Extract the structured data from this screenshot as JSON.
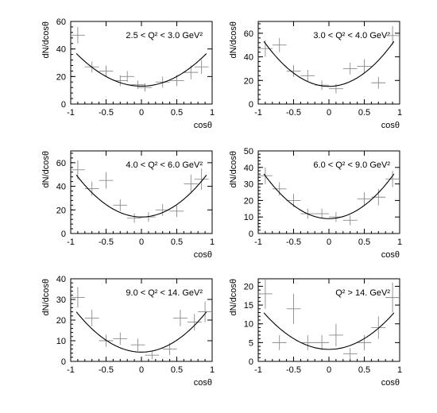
{
  "chart_data": [
    {
      "type": "scatter",
      "panel_label": "2.5 < Q² < 3.0 GeV²",
      "xlabel": "cosθ",
      "ylabel": "dN/dcosθ",
      "xlim": [
        -1,
        1
      ],
      "ylim": [
        0,
        60
      ],
      "xticks": [
        -1,
        -0.5,
        0,
        0.5,
        1
      ],
      "xtick_labels": [
        "-1",
        "-0.5",
        "0",
        "0.5",
        "1"
      ],
      "yticks": [
        0,
        20,
        40,
        60
      ],
      "fit": {
        "a": 13,
        "b": 28
      },
      "points": [
        {
          "x": -0.9,
          "y": 50,
          "xerr": 0.1,
          "yerr": 6
        },
        {
          "x": -0.7,
          "y": 27,
          "xerr": 0.1,
          "yerr": 4
        },
        {
          "x": -0.5,
          "y": 24,
          "xerr": 0.1,
          "yerr": 4
        },
        {
          "x": -0.3,
          "y": 17,
          "xerr": 0.1,
          "yerr": 4
        },
        {
          "x": -0.2,
          "y": 20,
          "xerr": 0.1,
          "yerr": 4
        },
        {
          "x": -0.05,
          "y": 14,
          "xerr": 0.1,
          "yerr": 3
        },
        {
          "x": 0.05,
          "y": 12,
          "xerr": 0.1,
          "yerr": 3
        },
        {
          "x": 0.3,
          "y": 16,
          "xerr": 0.1,
          "yerr": 4
        },
        {
          "x": 0.5,
          "y": 17,
          "xerr": 0.1,
          "yerr": 4
        },
        {
          "x": 0.7,
          "y": 23,
          "xerr": 0.1,
          "yerr": 5
        },
        {
          "x": 0.85,
          "y": 27,
          "xerr": 0.1,
          "yerr": 5
        }
      ]
    },
    {
      "type": "scatter",
      "panel_label": "3.0 < Q² < 4.0 GeV²",
      "xlabel": "cosθ",
      "ylabel": "dN/dcosθ",
      "xlim": [
        -1,
        1
      ],
      "ylim": [
        0,
        70
      ],
      "xticks": [
        -1,
        -0.5,
        0,
        0.5,
        1
      ],
      "xtick_labels": [
        "-1",
        "-0.5",
        "0",
        "0.5",
        "1"
      ],
      "yticks": [
        0,
        20,
        40,
        60
      ],
      "fit": {
        "a": 15,
        "b": 45
      },
      "points": [
        {
          "x": -0.9,
          "y": 47,
          "xerr": 0.1,
          "yerr": 7
        },
        {
          "x": -0.7,
          "y": 50,
          "xerr": 0.1,
          "yerr": 6
        },
        {
          "x": -0.5,
          "y": 28,
          "xerr": 0.1,
          "yerr": 5
        },
        {
          "x": -0.3,
          "y": 24,
          "xerr": 0.1,
          "yerr": 5
        },
        {
          "x": -0.1,
          "y": 16,
          "xerr": 0.1,
          "yerr": 4
        },
        {
          "x": 0.1,
          "y": 13,
          "xerr": 0.1,
          "yerr": 4
        },
        {
          "x": 0.3,
          "y": 30,
          "xerr": 0.1,
          "yerr": 5
        },
        {
          "x": 0.5,
          "y": 32,
          "xerr": 0.1,
          "yerr": 6
        },
        {
          "x": 0.7,
          "y": 18,
          "xerr": 0.1,
          "yerr": 5
        },
        {
          "x": 0.9,
          "y": 58,
          "xerr": 0.1,
          "yerr": 8
        }
      ]
    },
    {
      "type": "scatter",
      "panel_label": "4.0 < Q² < 6.0 GeV²",
      "xlabel": "cosθ",
      "ylabel": "dN/dcosθ",
      "xlim": [
        -1,
        1
      ],
      "ylim": [
        0,
        70
      ],
      "xticks": [
        -1,
        -0.5,
        0,
        0.5,
        1
      ],
      "xtick_labels": [
        "-1",
        "-0.5",
        "0",
        "0.5",
        "1"
      ],
      "yticks": [
        0,
        20,
        40,
        60
      ],
      "fit": {
        "a": 14,
        "b": 42
      },
      "points": [
        {
          "x": -0.9,
          "y": 54,
          "xerr": 0.1,
          "yerr": 8
        },
        {
          "x": -0.7,
          "y": 38,
          "xerr": 0.1,
          "yerr": 6
        },
        {
          "x": -0.5,
          "y": 45,
          "xerr": 0.1,
          "yerr": 7
        },
        {
          "x": -0.3,
          "y": 24,
          "xerr": 0.1,
          "yerr": 5
        },
        {
          "x": -0.1,
          "y": 13,
          "xerr": 0.1,
          "yerr": 4
        },
        {
          "x": 0.1,
          "y": 14,
          "xerr": 0.1,
          "yerr": 4
        },
        {
          "x": 0.3,
          "y": 20,
          "xerr": 0.1,
          "yerr": 5
        },
        {
          "x": 0.5,
          "y": 19,
          "xerr": 0.1,
          "yerr": 5
        },
        {
          "x": 0.7,
          "y": 42,
          "xerr": 0.1,
          "yerr": 8
        },
        {
          "x": 0.85,
          "y": 46,
          "xerr": 0.1,
          "yerr": 9
        }
      ]
    },
    {
      "type": "scatter",
      "panel_label": "6.0 < Q² < 9.0 GeV²",
      "xlabel": "cosθ",
      "ylabel": "dN/dcosθ",
      "xlim": [
        -1,
        1
      ],
      "ylim": [
        0,
        50
      ],
      "xticks": [
        -1,
        -0.5,
        0,
        0.5,
        1
      ],
      "xtick_labels": [
        "-1",
        "-0.5",
        "0",
        "0.5",
        "1"
      ],
      "yticks": [
        0,
        10,
        20,
        30,
        40,
        50
      ],
      "fit": {
        "a": 9,
        "b": 32
      },
      "points": [
        {
          "x": -0.9,
          "y": 35,
          "xerr": 0.1,
          "yerr": 5
        },
        {
          "x": -0.7,
          "y": 27,
          "xerr": 0.1,
          "yerr": 4
        },
        {
          "x": -0.5,
          "y": 20,
          "xerr": 0.1,
          "yerr": 4
        },
        {
          "x": -0.3,
          "y": 12,
          "xerr": 0.1,
          "yerr": 3
        },
        {
          "x": -0.1,
          "y": 12,
          "xerr": 0.1,
          "yerr": 3
        },
        {
          "x": 0.1,
          "y": 10,
          "xerr": 0.1,
          "yerr": 3
        },
        {
          "x": 0.3,
          "y": 8,
          "xerr": 0.1,
          "yerr": 3
        },
        {
          "x": 0.5,
          "y": 21,
          "xerr": 0.1,
          "yerr": 4
        },
        {
          "x": 0.7,
          "y": 22,
          "xerr": 0.1,
          "yerr": 5
        },
        {
          "x": 0.9,
          "y": 33,
          "xerr": 0.1,
          "yerr": 5
        }
      ]
    },
    {
      "type": "scatter",
      "panel_label": "9.0 < Q² < 14. GeV²",
      "xlabel": "cosθ",
      "ylabel": "dN/dcosθ",
      "xlim": [
        -1,
        1
      ],
      "ylim": [
        0,
        40
      ],
      "xticks": [
        -1,
        -0.5,
        0,
        0.5,
        1
      ],
      "xtick_labels": [
        "-1",
        "-0.5",
        "0",
        "0.5",
        "1"
      ],
      "yticks": [
        0,
        10,
        20,
        30,
        40
      ],
      "fit": {
        "a": 4.5,
        "b": 23
      },
      "points": [
        {
          "x": -0.9,
          "y": 31,
          "xerr": 0.1,
          "yerr": 5
        },
        {
          "x": -0.7,
          "y": 21,
          "xerr": 0.1,
          "yerr": 4
        },
        {
          "x": -0.5,
          "y": 10,
          "xerr": 0.1,
          "yerr": 3
        },
        {
          "x": -0.3,
          "y": 11,
          "xerr": 0.1,
          "yerr": 3
        },
        {
          "x": -0.05,
          "y": 8,
          "xerr": 0.1,
          "yerr": 3
        },
        {
          "x": 0.15,
          "y": 3,
          "xerr": 0.1,
          "yerr": 2
        },
        {
          "x": 0.4,
          "y": 6,
          "xerr": 0.1,
          "yerr": 3
        },
        {
          "x": 0.55,
          "y": 21,
          "xerr": 0.1,
          "yerr": 4
        },
        {
          "x": 0.75,
          "y": 19,
          "xerr": 0.1,
          "yerr": 4
        },
        {
          "x": 0.9,
          "y": 24,
          "xerr": 0.1,
          "yerr": 5
        }
      ]
    },
    {
      "type": "scatter",
      "panel_label": "Q² > 14. GeV²",
      "xlabel": "cosθ",
      "ylabel": "dN/dcosθ",
      "xlim": [
        -1,
        1
      ],
      "ylim": [
        0,
        22
      ],
      "xticks": [
        -1,
        -0.5,
        0,
        0.5,
        1
      ],
      "xtick_labels": [
        "-1",
        "-0.5",
        "0",
        "0.5",
        "1"
      ],
      "yticks": [
        0,
        5,
        10,
        15,
        20
      ],
      "fit": {
        "a": 3.2,
        "b": 11.5
      },
      "points": [
        {
          "x": -0.9,
          "y": 18,
          "xerr": 0.1,
          "yerr": 4
        },
        {
          "x": -0.7,
          "y": 5,
          "xerr": 0.1,
          "yerr": 2
        },
        {
          "x": -0.5,
          "y": 14,
          "xerr": 0.1,
          "yerr": 4
        },
        {
          "x": -0.3,
          "y": 5,
          "xerr": 0.1,
          "yerr": 2
        },
        {
          "x": -0.1,
          "y": 5,
          "xerr": 0.1,
          "yerr": 2
        },
        {
          "x": 0.1,
          "y": 7,
          "xerr": 0.1,
          "yerr": 3
        },
        {
          "x": 0.3,
          "y": 2,
          "xerr": 0.1,
          "yerr": 1.5
        },
        {
          "x": 0.5,
          "y": 5,
          "xerr": 0.1,
          "yerr": 2
        },
        {
          "x": 0.7,
          "y": 9,
          "xerr": 0.1,
          "yerr": 3
        },
        {
          "x": 0.9,
          "y": 17,
          "xerr": 0.1,
          "yerr": 4
        }
      ]
    }
  ]
}
